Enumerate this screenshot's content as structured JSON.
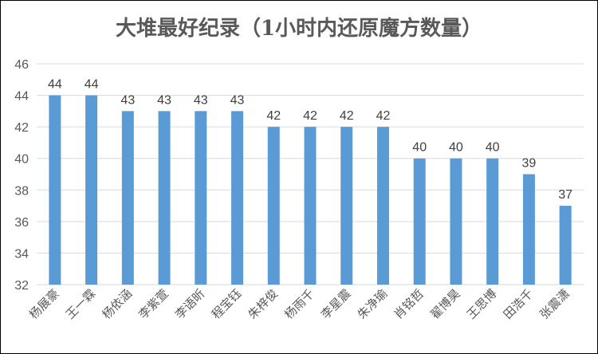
{
  "chart_data": {
    "type": "bar",
    "title": "大堆最好纪录（1小时内还原魔方数量）",
    "categories": [
      "杨展豪",
      "王一霖",
      "杨依涵",
      "李紫萱",
      "李语昕",
      "程宝钰",
      "朱梓俊",
      "杨雨千",
      "李星震",
      "朱净瑜",
      "肖铭哲",
      "翟博昊",
      "王思博",
      "田浩千",
      "张震潇"
    ],
    "values": [
      44,
      44,
      43,
      43,
      43,
      43,
      42,
      42,
      42,
      42,
      40,
      40,
      40,
      39,
      37
    ],
    "ylim": [
      32,
      46
    ],
    "yticks": [
      32,
      34,
      36,
      38,
      40,
      42,
      44,
      46
    ],
    "xlabel": "",
    "ylabel": "",
    "grid": "horizontal",
    "legend": "none",
    "bar_color": "#5b9bd5",
    "grid_color": "#d9d9d9"
  }
}
